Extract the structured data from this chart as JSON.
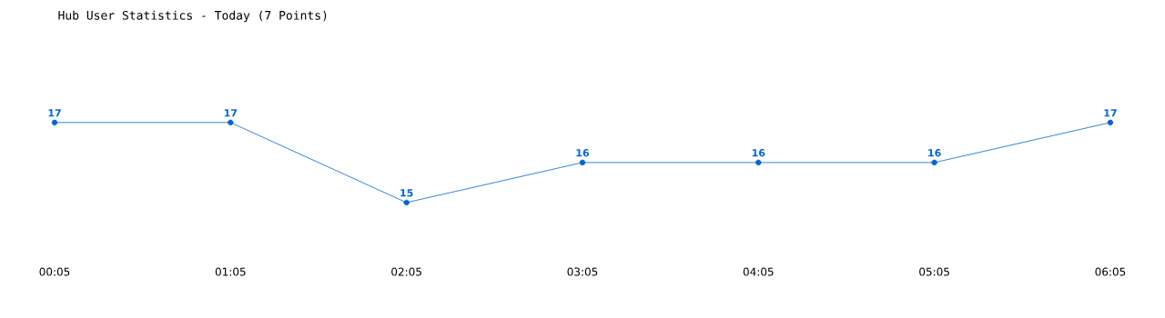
{
  "chart_data": {
    "type": "line",
    "title": "Hub User Statistics - Today (7 Points)",
    "categories": [
      "00:05",
      "01:05",
      "02:05",
      "03:05",
      "04:05",
      "05:05",
      "06:05"
    ],
    "values": [
      17,
      17,
      15,
      16,
      16,
      16,
      17
    ],
    "color": "#0066cc",
    "data_labels": true,
    "marker": "circle",
    "line_style": "solid"
  }
}
